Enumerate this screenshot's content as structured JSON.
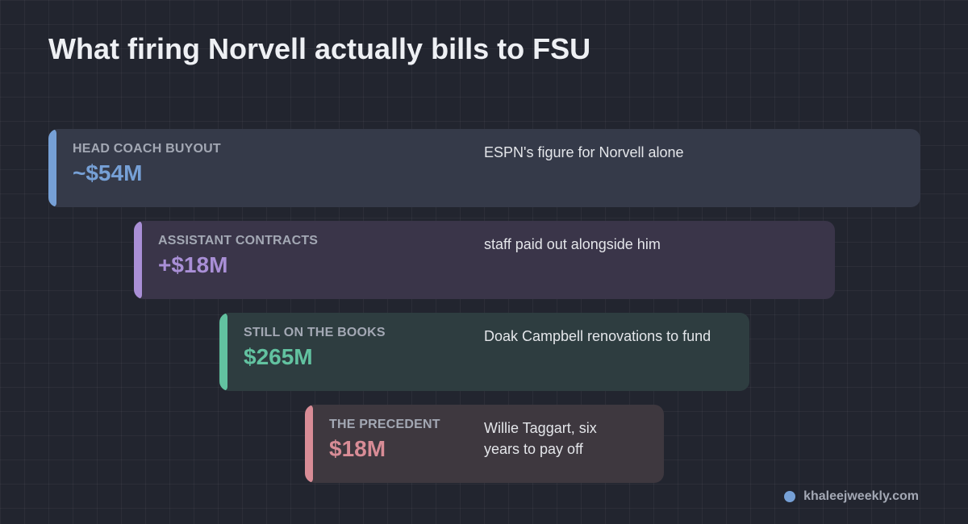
{
  "title": "What firing Norvell actually bills to FSU",
  "colors": {
    "blue": "#76a0d6",
    "purple": "#a98fd6",
    "green": "#62c2a0",
    "pink": "#d88c96"
  },
  "cards": [
    {
      "label": "HEAD COACH BUYOUT",
      "value": "~$54M",
      "note": "ESPN's figure for Norvell alone",
      "color": "#76a0d6"
    },
    {
      "label": "ASSISTANT CONTRACTS",
      "value": "+$18M",
      "note": "staff paid out alongside him",
      "color": "#a98fd6"
    },
    {
      "label": "STILL ON THE BOOKS",
      "value": "$265M",
      "note": "Doak Campbell renovations to fund",
      "color": "#62c2a0"
    },
    {
      "label": "THE PRECEDENT",
      "value": "$18M",
      "note": "Willie Taggart, six years to pay off",
      "color": "#d88c96"
    }
  ],
  "source": {
    "site": "khaleejweekly.com",
    "dot_color": "#76a0d6"
  }
}
